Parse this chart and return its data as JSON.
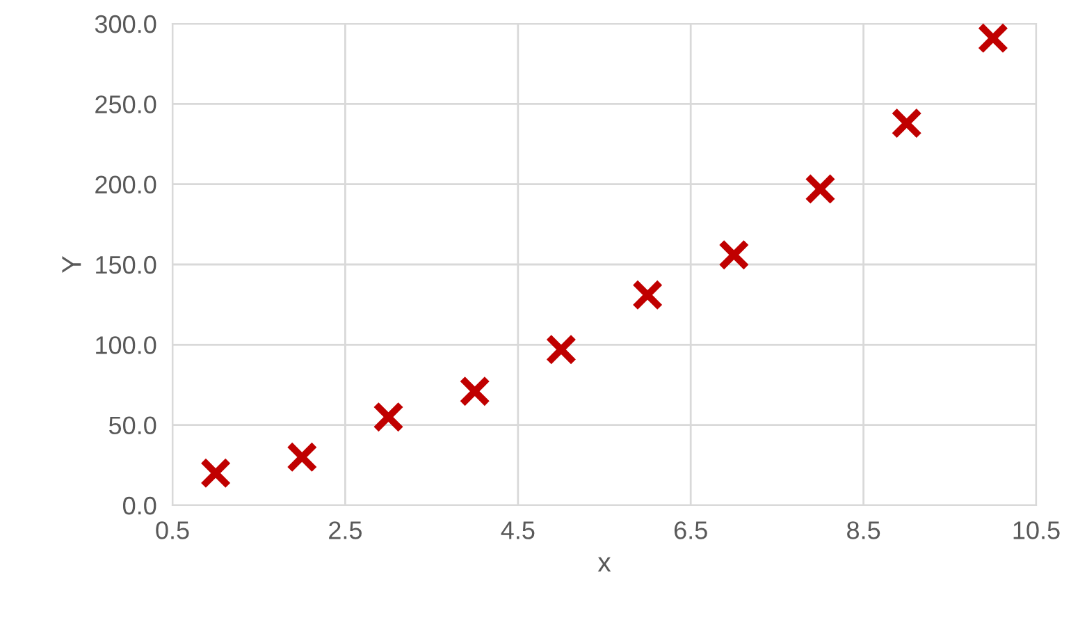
{
  "chart_data": {
    "type": "scatter",
    "xlabel": "x",
    "ylabel": "Y",
    "x": [
      1,
      2,
      3,
      4,
      5,
      6,
      7,
      8,
      9,
      10
    ],
    "series": [
      {
        "color": "#c00000",
        "values": [
          20,
          30,
          55,
          71,
          97,
          131,
          156,
          197,
          238,
          291
        ]
      }
    ],
    "xlim": [
      0.5,
      10.5
    ],
    "xticks": [
      0.5,
      2.5,
      4.5,
      6.5,
      8.5,
      10.5
    ],
    "ylim": [
      0,
      300
    ],
    "yticks": [
      {
        "value": 0,
        "label": "0.0"
      },
      {
        "value": 50,
        "label": "50.0"
      },
      {
        "value": 100,
        "label": "100.0"
      },
      {
        "value": 150,
        "label": "150.0"
      },
      {
        "value": 200,
        "label": "200.0"
      },
      {
        "value": 250,
        "label": "250.0"
      },
      {
        "value": 300,
        "label": "300.0"
      }
    ],
    "grid": true,
    "marker": "cross",
    "legend": false
  }
}
